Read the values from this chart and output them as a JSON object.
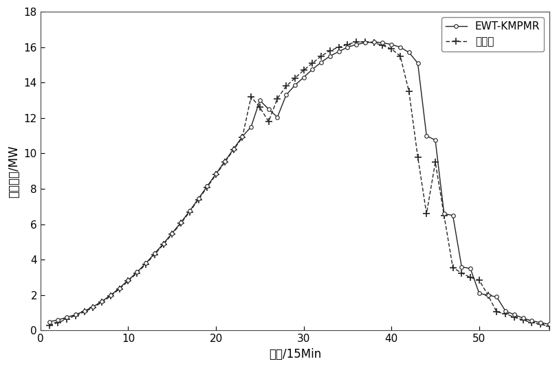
{
  "ewt_x": [
    1,
    2,
    3,
    4,
    5,
    6,
    7,
    8,
    9,
    10,
    11,
    12,
    13,
    14,
    15,
    16,
    17,
    18,
    19,
    20,
    21,
    22,
    23,
    24,
    25,
    26,
    27,
    28,
    29,
    30,
    31,
    32,
    33,
    34,
    35,
    36,
    37,
    38,
    39,
    40,
    41,
    42,
    43,
    44,
    45,
    46,
    47,
    48,
    49,
    50,
    51,
    52,
    53,
    54,
    55,
    56,
    57,
    58
  ],
  "ewt_y": [
    0.5,
    0.6,
    0.75,
    0.9,
    1.1,
    1.35,
    1.65,
    2.0,
    2.4,
    2.85,
    3.3,
    3.8,
    4.35,
    4.9,
    5.5,
    6.1,
    6.75,
    7.45,
    8.15,
    8.85,
    9.55,
    10.25,
    10.95,
    11.5,
    13.0,
    12.5,
    12.05,
    13.3,
    13.85,
    14.3,
    14.75,
    15.15,
    15.5,
    15.75,
    16.0,
    16.15,
    16.25,
    16.3,
    16.25,
    16.15,
    16.0,
    15.7,
    15.1,
    11.0,
    10.75,
    6.6,
    6.5,
    3.6,
    3.5,
    2.1,
    2.0,
    1.9,
    1.1,
    0.9,
    0.7,
    0.55,
    0.45,
    0.35
  ],
  "actual_x": [
    1,
    2,
    3,
    4,
    5,
    6,
    7,
    8,
    9,
    10,
    11,
    12,
    13,
    14,
    15,
    16,
    17,
    18,
    19,
    20,
    21,
    22,
    23,
    24,
    25,
    26,
    27,
    28,
    29,
    30,
    31,
    32,
    33,
    34,
    35,
    36,
    37,
    38,
    39,
    40,
    41,
    42,
    43,
    44,
    45,
    46,
    47,
    48,
    49,
    50,
    51,
    52,
    53,
    54,
    55,
    56,
    57,
    58
  ],
  "actual_y": [
    0.3,
    0.45,
    0.65,
    0.85,
    1.05,
    1.3,
    1.6,
    1.95,
    2.35,
    2.8,
    3.25,
    3.75,
    4.3,
    4.85,
    5.45,
    6.05,
    6.7,
    7.4,
    8.1,
    8.8,
    9.5,
    10.2,
    10.9,
    13.2,
    12.6,
    11.8,
    13.1,
    13.8,
    14.25,
    14.7,
    15.1,
    15.5,
    15.8,
    16.0,
    16.15,
    16.3,
    16.3,
    16.25,
    16.1,
    15.9,
    15.5,
    13.5,
    9.8,
    6.6,
    9.5,
    6.5,
    3.55,
    3.25,
    3.0,
    2.85,
    2.0,
    1.05,
    0.95,
    0.75,
    0.6,
    0.45,
    0.35,
    0.25
  ],
  "xlabel": "时间/15Min",
  "ylabel": "光伏功率/MW",
  "xlim": [
    0,
    58
  ],
  "ylim": [
    0,
    18
  ],
  "xticks": [
    0,
    10,
    20,
    30,
    40,
    50
  ],
  "yticks": [
    0,
    2,
    4,
    6,
    8,
    10,
    12,
    14,
    16,
    18
  ],
  "legend_ewt": "EWT-KMPMR",
  "legend_actual": "实际値",
  "line_color": "#222222",
  "bg_color": "#ffffff"
}
